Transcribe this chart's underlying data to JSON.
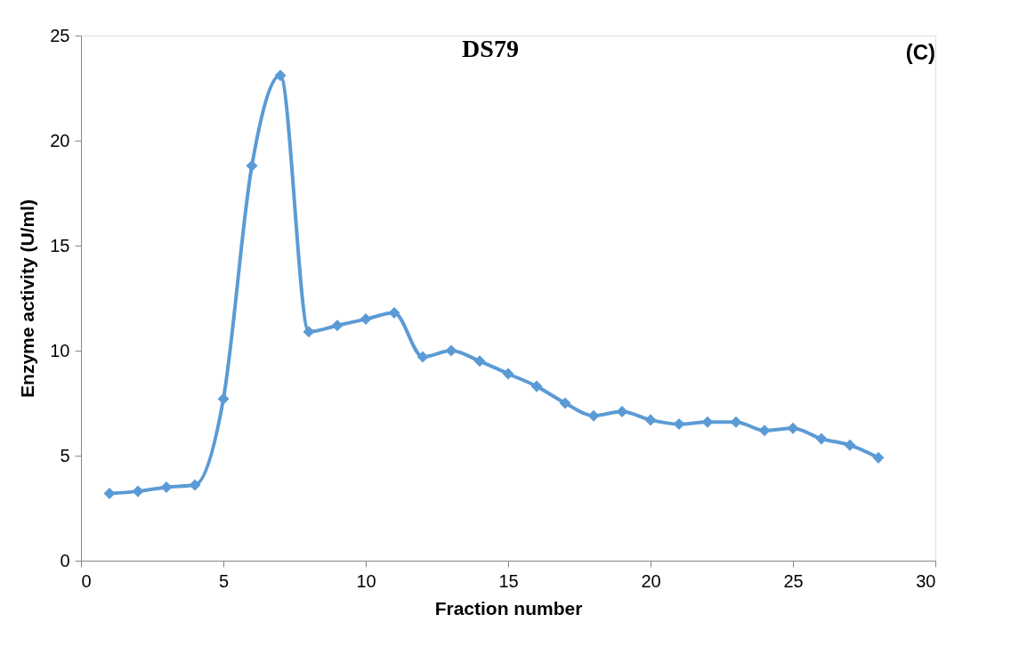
{
  "chart_data": {
    "type": "line",
    "title": "DS79",
    "xlabel": "Fraction number",
    "ylabel": "Enzyme activity (U/ml)",
    "annotations": [
      "(C)"
    ],
    "x": [
      1,
      2,
      3,
      4,
      5,
      6,
      7,
      8,
      9,
      10,
      11,
      12,
      13,
      14,
      15,
      16,
      17,
      18,
      19,
      20,
      21,
      22,
      23,
      24,
      25,
      26,
      27,
      28
    ],
    "series": [
      {
        "color": "#5b9bd5",
        "values": [
          3.2,
          3.3,
          3.5,
          3.6,
          7.7,
          18.8,
          23.1,
          10.9,
          11.2,
          11.5,
          11.8,
          9.7,
          10.0,
          9.5,
          8.9,
          8.3,
          7.5,
          6.9,
          7.1,
          6.7,
          6.5,
          6.6,
          6.6,
          6.2,
          6.3,
          5.8,
          5.5,
          4.9
        ]
      }
    ],
    "xlim": [
      0,
      30
    ],
    "xticks": [
      0,
      5,
      10,
      15,
      20,
      25,
      30
    ],
    "ylim": [
      0,
      25
    ],
    "yticks": [
      0,
      5,
      10,
      15,
      20,
      25
    ],
    "grid": false,
    "marker": "diamond",
    "line_style": "solid"
  }
}
